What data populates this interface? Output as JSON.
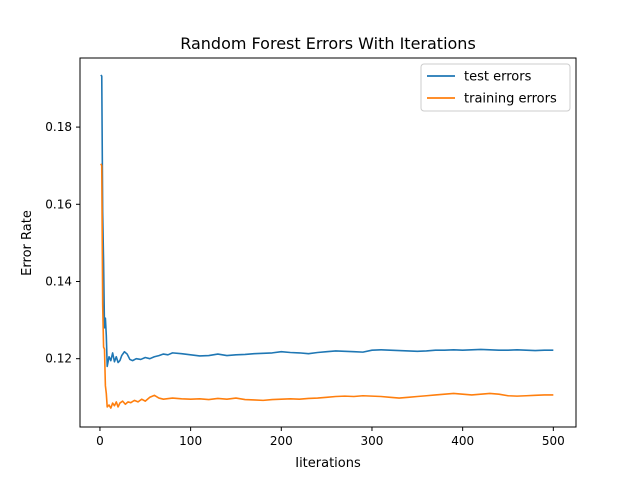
{
  "chart_data": {
    "type": "line",
    "title": "Random Forest Errors With Iterations",
    "xlabel": "Iiterations",
    "ylabel": "Error Rate",
    "xlim": [
      -22,
      525
    ],
    "ylim": [
      0.1023,
      0.1979
    ],
    "xticks": [
      0,
      100,
      200,
      300,
      400,
      500
    ],
    "yticks": [
      0.12,
      0.14,
      0.16,
      0.18
    ],
    "grid": false,
    "legend_position": "top-right",
    "series": [
      {
        "name": "test errors",
        "color": "#1f77b4",
        "points": [
          [
            1,
            0.1935
          ],
          [
            2,
            0.1932
          ],
          [
            3,
            0.158
          ],
          [
            4,
            0.145
          ],
          [
            5,
            0.128
          ],
          [
            6,
            0.1305
          ],
          [
            7,
            0.126
          ],
          [
            8,
            0.118
          ],
          [
            10,
            0.1205
          ],
          [
            12,
            0.1195
          ],
          [
            14,
            0.1215
          ],
          [
            16,
            0.1192
          ],
          [
            18,
            0.1205
          ],
          [
            20,
            0.119
          ],
          [
            22,
            0.1195
          ],
          [
            24,
            0.1208
          ],
          [
            27,
            0.1218
          ],
          [
            30,
            0.1212
          ],
          [
            33,
            0.1198
          ],
          [
            36,
            0.1195
          ],
          [
            40,
            0.12
          ],
          [
            45,
            0.1198
          ],
          [
            50,
            0.1203
          ],
          [
            55,
            0.12
          ],
          [
            60,
            0.1205
          ],
          [
            65,
            0.1208
          ],
          [
            70,
            0.1212
          ],
          [
            75,
            0.121
          ],
          [
            80,
            0.1215
          ],
          [
            90,
            0.1213
          ],
          [
            100,
            0.121
          ],
          [
            110,
            0.1207
          ],
          [
            120,
            0.1208
          ],
          [
            130,
            0.1212
          ],
          [
            140,
            0.1208
          ],
          [
            150,
            0.121
          ],
          [
            160,
            0.1211
          ],
          [
            170,
            0.1213
          ],
          [
            180,
            0.1214
          ],
          [
            190,
            0.1215
          ],
          [
            200,
            0.1218
          ],
          [
            210,
            0.1216
          ],
          [
            220,
            0.1215
          ],
          [
            230,
            0.1213
          ],
          [
            240,
            0.1216
          ],
          [
            250,
            0.1218
          ],
          [
            260,
            0.122
          ],
          [
            270,
            0.1219
          ],
          [
            280,
            0.1218
          ],
          [
            290,
            0.1217
          ],
          [
            300,
            0.1222
          ],
          [
            310,
            0.1223
          ],
          [
            320,
            0.1222
          ],
          [
            330,
            0.1221
          ],
          [
            340,
            0.122
          ],
          [
            350,
            0.1219
          ],
          [
            360,
            0.122
          ],
          [
            370,
            0.1222
          ],
          [
            380,
            0.1222
          ],
          [
            390,
            0.1223
          ],
          [
            400,
            0.1222
          ],
          [
            410,
            0.1223
          ],
          [
            420,
            0.1224
          ],
          [
            430,
            0.1223
          ],
          [
            440,
            0.1222
          ],
          [
            450,
            0.1222
          ],
          [
            460,
            0.1223
          ],
          [
            470,
            0.1222
          ],
          [
            480,
            0.1221
          ],
          [
            490,
            0.1222
          ],
          [
            500,
            0.1222
          ]
        ]
      },
      {
        "name": "training errors",
        "color": "#ff7f0e",
        "points": [
          [
            1,
            0.1705
          ],
          [
            2,
            0.17
          ],
          [
            3,
            0.134
          ],
          [
            4,
            0.123
          ],
          [
            5,
            0.1225
          ],
          [
            6,
            0.113
          ],
          [
            7,
            0.111
          ],
          [
            8,
            0.1075
          ],
          [
            10,
            0.108
          ],
          [
            12,
            0.1072
          ],
          [
            14,
            0.1085
          ],
          [
            16,
            0.1078
          ],
          [
            18,
            0.1088
          ],
          [
            20,
            0.1075
          ],
          [
            22,
            0.1085
          ],
          [
            25,
            0.109
          ],
          [
            28,
            0.1082
          ],
          [
            31,
            0.1088
          ],
          [
            34,
            0.1086
          ],
          [
            38,
            0.1092
          ],
          [
            42,
            0.1088
          ],
          [
            46,
            0.1095
          ],
          [
            50,
            0.109
          ],
          [
            55,
            0.11
          ],
          [
            60,
            0.1105
          ],
          [
            65,
            0.1098
          ],
          [
            70,
            0.1095
          ],
          [
            80,
            0.1098
          ],
          [
            90,
            0.1096
          ],
          [
            100,
            0.1095
          ],
          [
            110,
            0.1096
          ],
          [
            120,
            0.1094
          ],
          [
            130,
            0.1097
          ],
          [
            140,
            0.1095
          ],
          [
            150,
            0.1098
          ],
          [
            160,
            0.1094
          ],
          [
            170,
            0.1093
          ],
          [
            180,
            0.1092
          ],
          [
            190,
            0.1094
          ],
          [
            200,
            0.1095
          ],
          [
            210,
            0.1096
          ],
          [
            220,
            0.1095
          ],
          [
            230,
            0.1097
          ],
          [
            240,
            0.1098
          ],
          [
            250,
            0.11
          ],
          [
            260,
            0.1102
          ],
          [
            270,
            0.1103
          ],
          [
            280,
            0.1102
          ],
          [
            290,
            0.1104
          ],
          [
            300,
            0.1103
          ],
          [
            310,
            0.1102
          ],
          [
            320,
            0.11
          ],
          [
            330,
            0.1098
          ],
          [
            340,
            0.11
          ],
          [
            350,
            0.1102
          ],
          [
            360,
            0.1104
          ],
          [
            370,
            0.1106
          ],
          [
            380,
            0.1108
          ],
          [
            390,
            0.111
          ],
          [
            400,
            0.1108
          ],
          [
            410,
            0.1106
          ],
          [
            420,
            0.1108
          ],
          [
            430,
            0.111
          ],
          [
            440,
            0.1108
          ],
          [
            450,
            0.1104
          ],
          [
            460,
            0.1103
          ],
          [
            470,
            0.1104
          ],
          [
            480,
            0.1105
          ],
          [
            490,
            0.1106
          ],
          [
            500,
            0.1106
          ]
        ]
      }
    ]
  }
}
